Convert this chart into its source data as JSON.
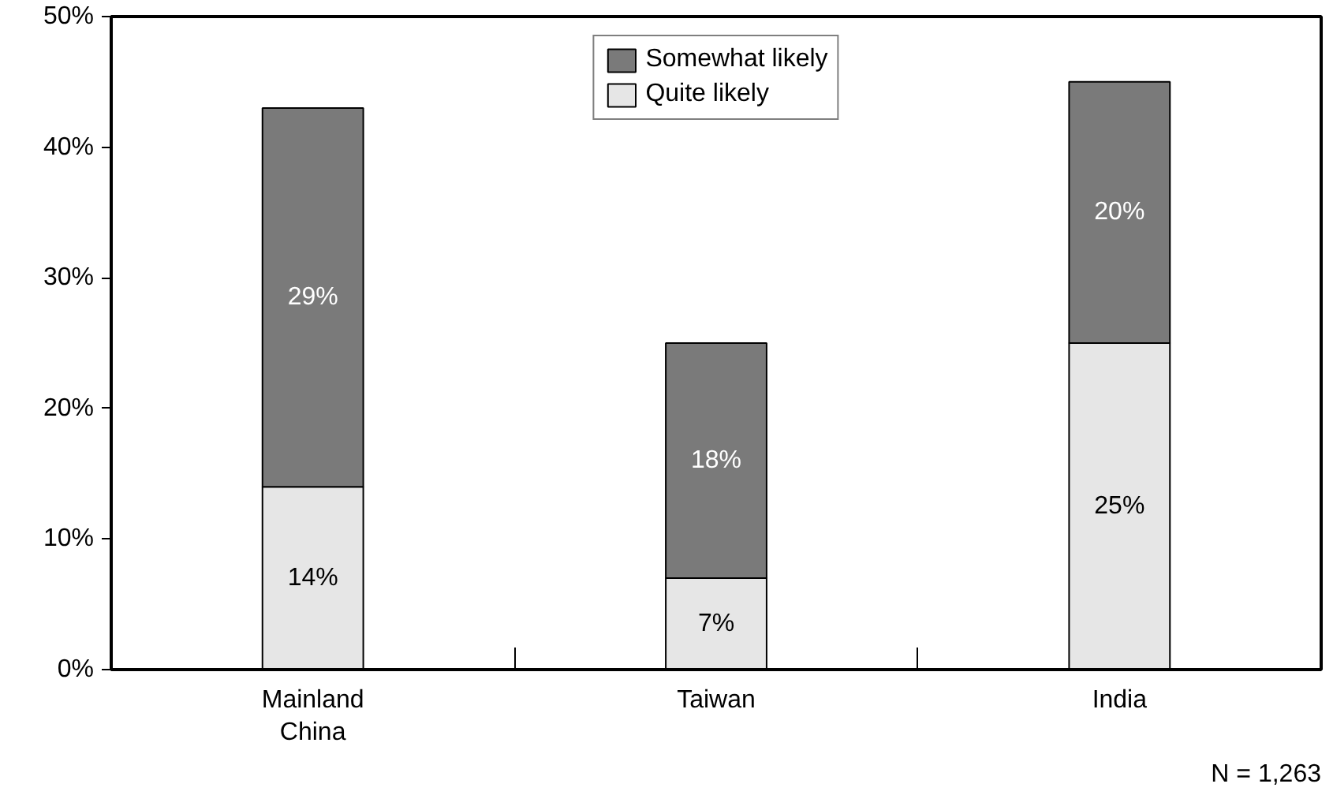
{
  "chart_data": {
    "type": "bar",
    "stacked": true,
    "categories": [
      "Mainland China",
      "Taiwan",
      "India"
    ],
    "series": [
      {
        "name": "Quite likely",
        "color": "#e6e6e6",
        "values": [
          14,
          7,
          25
        ],
        "value_labels": [
          "14%",
          "7%",
          "25%"
        ]
      },
      {
        "name": "Somewhat likely",
        "color": "#7a7a7a",
        "values": [
          29,
          18,
          20
        ],
        "value_labels": [
          "29%",
          "18%",
          "20%"
        ]
      }
    ],
    "ylim": [
      0,
      50
    ],
    "yticks": [
      {
        "value": 0,
        "label": "0%"
      },
      {
        "value": 10,
        "label": "10%"
      },
      {
        "value": 20,
        "label": "20%"
      },
      {
        "value": 30,
        "label": "30%"
      },
      {
        "value": 40,
        "label": "40%"
      },
      {
        "value": 50,
        "label": "50%"
      }
    ],
    "legend": "top",
    "grid": false,
    "annotations": [
      "N = 1,263"
    ]
  }
}
